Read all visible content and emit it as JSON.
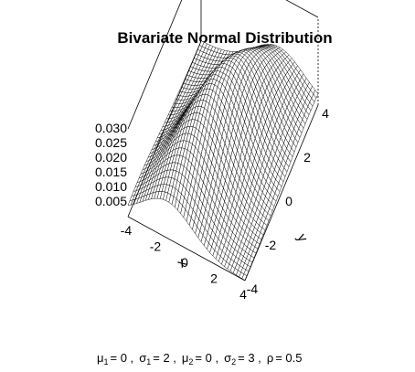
{
  "chart_data": {
    "type": "surface",
    "title": "Bivariate Normal Distribution",
    "xlabel": "x",
    "ylabel": "y",
    "zlabel": "",
    "xlim": [
      -4,
      4
    ],
    "ylim": [
      -4,
      4
    ],
    "zlim": [
      0,
      0.03
    ],
    "x_ticks": [
      "-4",
      "-2",
      "0",
      "2",
      "4"
    ],
    "y_ticks": [
      "-4",
      "-2",
      "0",
      "2",
      "4"
    ],
    "z_ticks": [
      "0.005",
      "0.010",
      "0.015",
      "0.020",
      "0.025",
      "0.030"
    ],
    "params": {
      "mu1": 0,
      "sigma1": 2,
      "mu2": 0,
      "sigma2": 3,
      "rho": 0.5
    },
    "grid_n": 41,
    "subtitle": {
      "mu1": {
        "sym": "μ",
        "sub": "1",
        "val": "= 0 ,"
      },
      "s1": {
        "sym": "σ",
        "sub": "1",
        "val": "= 2 ,"
      },
      "mu2": {
        "sym": "μ",
        "sub": "2",
        "val": "= 0 ,"
      },
      "s2": {
        "sym": "σ",
        "sub": "2",
        "val": "= 3 ,"
      },
      "rho": {
        "sym": "ρ",
        "val": "= 0.5"
      }
    },
    "colors": {
      "surface": "#ffffff",
      "mesh": "#000000",
      "box": "#000000"
    }
  }
}
